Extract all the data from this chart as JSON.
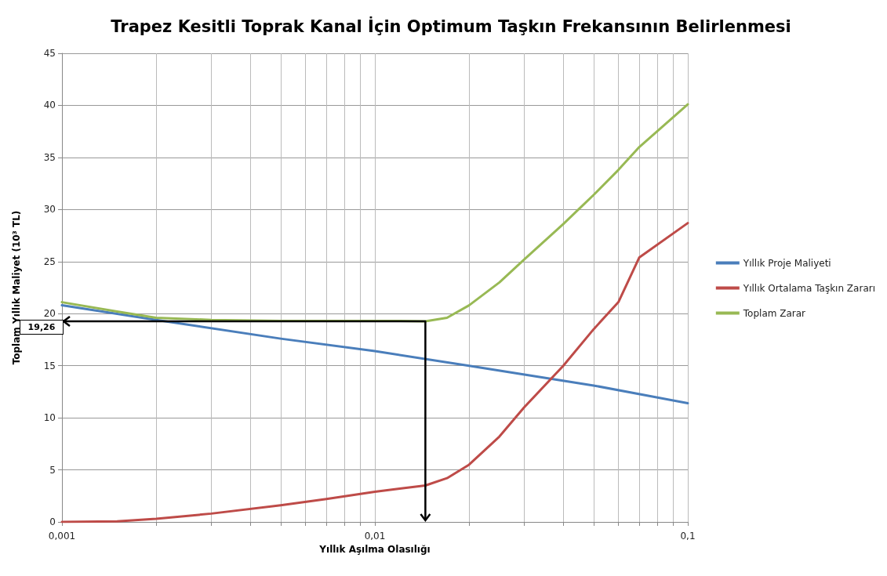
{
  "chart_data": {
    "type": "line",
    "title": "Trapez Kesitli Toprak Kanal İçin Optimum Taşkın Frekansının Belirlenmesi",
    "xlabel": "Yıllık Aşılma Olasılığı",
    "ylabel": "Toplam Yıllık Maliyet (10³ TL)",
    "x": [
      0.001,
      0.0015,
      0.002,
      0.003,
      0.005,
      0.007,
      0.01,
      0.012,
      0.0145,
      0.017,
      0.02,
      0.025,
      0.03,
      0.04,
      0.05,
      0.06,
      0.07,
      0.1
    ],
    "series": [
      {
        "name": "Yıllık Proje Maliyeti",
        "color": "#4a7ebb",
        "x": [
          0.001,
          0.002,
          0.005,
          0.01,
          0.02,
          0.05,
          0.1
        ],
        "values": [
          20.8,
          19.4,
          17.6,
          16.4,
          15.0,
          13.1,
          11.4
        ]
      },
      {
        "name": "Yıllık Ortalama Taşkın Zararı",
        "color": "#be4b48",
        "values": [
          0,
          0.05,
          0.3,
          0.8,
          1.6,
          2.2,
          2.9,
          3.2,
          3.5,
          4.2,
          5.5,
          8.2,
          11.0,
          15.0,
          18.5,
          21.1,
          25.4,
          28.7
        ]
      },
      {
        "name": "Toplam Zarar",
        "color": "#98b954",
        "values": [
          21.1,
          20.2,
          19.6,
          19.4,
          19.3,
          19.3,
          19.3,
          19.3,
          19.26,
          19.6,
          20.8,
          23.0,
          25.2,
          28.6,
          31.4,
          33.8,
          36.0,
          40.1
        ]
      }
    ],
    "log": "x",
    "xlim": [
      0.001,
      0.1
    ],
    "xticks": [
      {
        "value": 0.001,
        "label": "0,001"
      },
      {
        "value": 0.002,
        "label": null
      },
      {
        "value": 0.003,
        "label": null
      },
      {
        "value": 0.004,
        "label": null
      },
      {
        "value": 0.005,
        "label": null
      },
      {
        "value": 0.006,
        "label": null
      },
      {
        "value": 0.007,
        "label": null
      },
      {
        "value": 0.008,
        "label": null
      },
      {
        "value": 0.009,
        "label": null
      },
      {
        "value": 0.01,
        "label": "0,01"
      },
      {
        "value": 0.02,
        "label": null
      },
      {
        "value": 0.03,
        "label": null
      },
      {
        "value": 0.04,
        "label": null
      },
      {
        "value": 0.05,
        "label": null
      },
      {
        "value": 0.06,
        "label": null
      },
      {
        "value": 0.07,
        "label": null
      },
      {
        "value": 0.08,
        "label": null
      },
      {
        "value": 0.09,
        "label": null
      },
      {
        "value": 0.1,
        "label": "0,1"
      }
    ],
    "ylim": [
      0,
      45
    ],
    "yticks": [
      0,
      5,
      10,
      15,
      20,
      25,
      30,
      35,
      40,
      45
    ],
    "grid": true,
    "legend": "right",
    "marker": "none",
    "line_style": "solid",
    "annotations": [
      "19,26"
    ]
  }
}
